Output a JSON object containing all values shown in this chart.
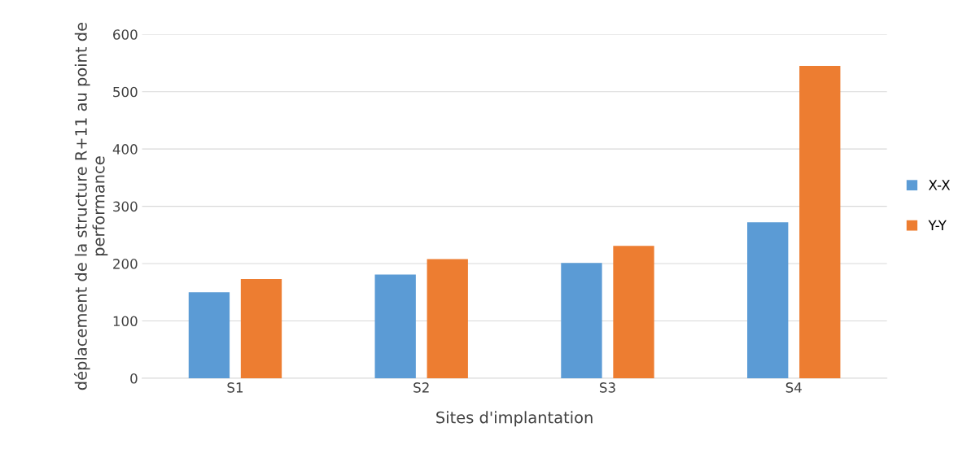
{
  "chart_data": {
    "type": "bar",
    "xlabel": "Sites d'implantation",
    "ylabel": "déplacement de la structure R+11 au point de performance",
    "categories": [
      "S1",
      "S2",
      "S3",
      "S4"
    ],
    "series": [
      {
        "name": "X-X",
        "color": "#5b9bd5",
        "values": [
          150,
          181,
          201,
          272
        ]
      },
      {
        "name": "Y-Y",
        "color": "#ed7d31",
        "values": [
          173,
          208,
          231,
          545
        ]
      }
    ],
    "ylim": [
      0,
      600
    ],
    "yticks": [
      0,
      100,
      200,
      300,
      400,
      500,
      600
    ],
    "grid": "y",
    "legend": "right"
  }
}
